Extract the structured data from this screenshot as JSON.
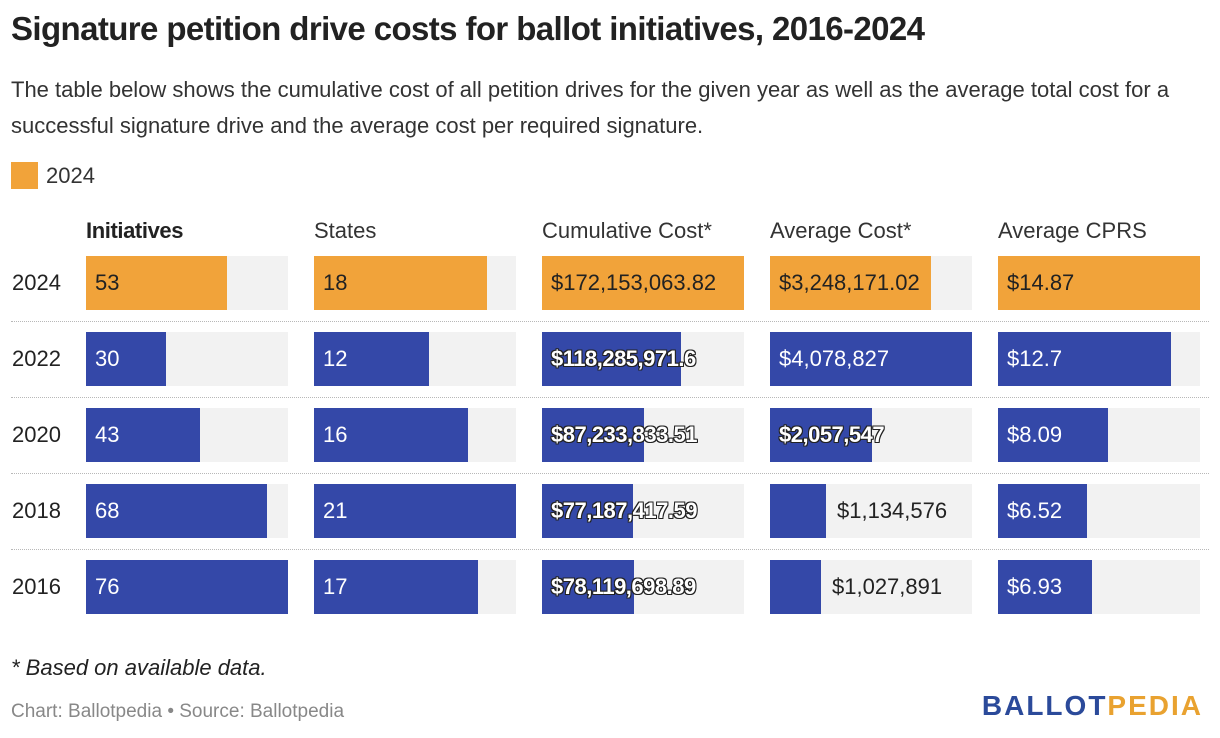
{
  "title": "Signature petition drive costs for ballot initiatives, 2016-2024",
  "subtitle": "The table below shows the cumulative cost of all petition drives for the given year as well as the average total cost for a successful signature drive and the average cost per required signature.",
  "legend": {
    "label": "2024",
    "color": "#f1a33a"
  },
  "colors": {
    "highlight": "#f1a33a",
    "default": "#3448a8",
    "track": "#f2f2f2"
  },
  "note": "* Based on available data.",
  "source": "Chart: Ballotpedia • Source: Ballotpedia",
  "logo": {
    "part1": "BALLOT",
    "part2": "PEDIA"
  },
  "chart_data": {
    "type": "table",
    "title": "Signature petition drive costs for ballot initiatives, 2016-2024",
    "columns": [
      {
        "key": "initiatives",
        "label": "Initiatives",
        "max": 76
      },
      {
        "key": "states",
        "label": "States",
        "max": 21
      },
      {
        "key": "cumulative_cost",
        "label": "Cumulative Cost*",
        "max": 172153063.82
      },
      {
        "key": "average_cost",
        "label": "Average Cost*",
        "max": 4078827
      },
      {
        "key": "average_cprs",
        "label": "Average CPRS",
        "max": 14.87
      }
    ],
    "rows": [
      {
        "year": "2024",
        "highlight": true,
        "values": [
          53,
          18,
          172153063.82,
          3248171.02,
          14.87
        ],
        "labels": [
          "53",
          "18",
          "$172,153,063.82",
          "$3,248,171.02",
          "$14.87"
        ]
      },
      {
        "year": "2022",
        "highlight": false,
        "values": [
          30,
          12,
          118285971.6,
          4078827,
          12.7
        ],
        "labels": [
          "30",
          "12",
          "$118,285,971.6",
          "$4,078,827",
          "$12.7"
        ]
      },
      {
        "year": "2020",
        "highlight": false,
        "values": [
          43,
          16,
          87233833.51,
          2057547,
          8.09
        ],
        "labels": [
          "43",
          "16",
          "$87,233,833.51",
          "$2,057,547",
          "$8.09"
        ]
      },
      {
        "year": "2018",
        "highlight": false,
        "values": [
          68,
          21,
          77187417.59,
          1134576,
          6.52
        ],
        "labels": [
          "68",
          "21",
          "$77,187,417.59",
          "$1,134,576",
          "$6.52"
        ]
      },
      {
        "year": "2016",
        "highlight": false,
        "values": [
          76,
          17,
          78119698.89,
          1027891,
          6.93
        ],
        "labels": [
          "76",
          "17",
          "$78,119,698.89",
          "$1,027,891",
          "$6.93"
        ]
      }
    ]
  }
}
